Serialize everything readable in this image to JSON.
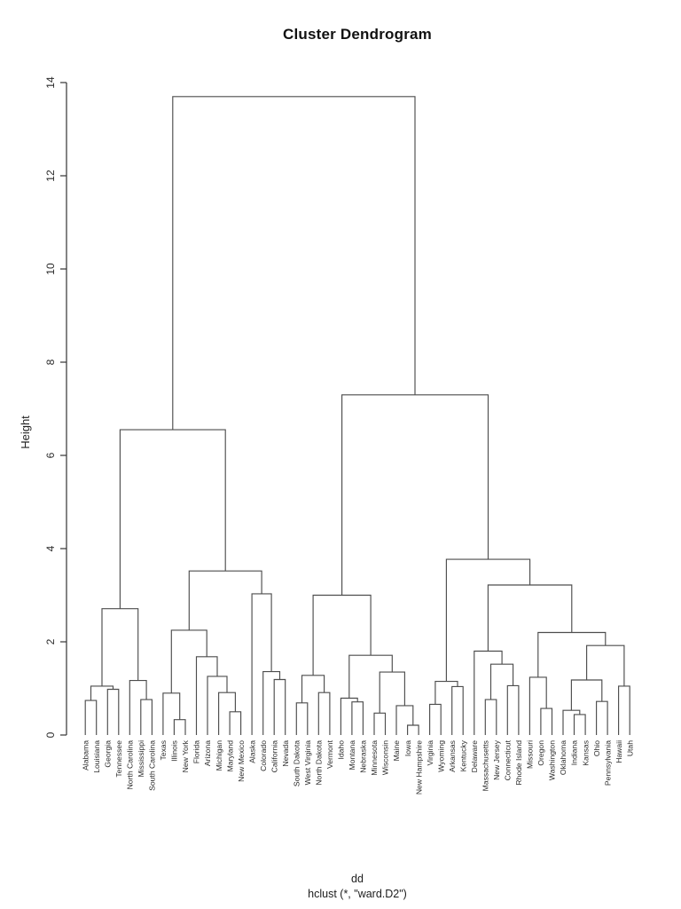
{
  "chart_data": {
    "type": "dendrogram",
    "title": "Cluster Dendrogram",
    "ylabel": "Height",
    "caption_line1": "dd",
    "caption_line2": "hclust (*, \"ward.D2\")",
    "ylim": [
      0,
      14
    ],
    "yticks": [
      0,
      2,
      4,
      6,
      8,
      10,
      12,
      14
    ],
    "grid": false,
    "line_color": "#4d4d4d",
    "leaves_in_order": [
      "Alabama",
      "Louisiana",
      "Georgia",
      "Tennessee",
      "North Carolina",
      "Mississippi",
      "South Carolina",
      "Texas",
      "Illinois",
      "New York",
      "Florida",
      "Arizona",
      "Michigan",
      "Maryland",
      "New Mexico",
      "Alaska",
      "Colorado",
      "California",
      "Nevada",
      "South Dakota",
      "West Virginia",
      "North Dakota",
      "Vermont",
      "Idaho",
      "Montana",
      "Nebraska",
      "Minnesota",
      "Wisconsin",
      "Maine",
      "Iowa",
      "New Hampshire",
      "Virginia",
      "Wyoming",
      "Arkansas",
      "Kentucky",
      "Delaware",
      "Massachusetts",
      "New Jersey",
      "Connecticut",
      "Rhode Island",
      "Missouri",
      "Oregon",
      "Washington",
      "Oklahoma",
      "Indiana",
      "Kansas",
      "Ohio",
      "Pennsylvania",
      "Hawaii",
      "Utah"
    ],
    "tree": {
      "h": 13.7,
      "c": [
        {
          "h": 6.55,
          "c": [
            {
              "h": 2.71,
              "c": [
                {
                  "h": 1.05,
                  "c": [
                    {
                      "h": 0.74,
                      "c": [
                        {
                          "name": "Alabama"
                        },
                        {
                          "name": "Louisiana"
                        }
                      ]
                    },
                    {
                      "h": 0.98,
                      "c": [
                        {
                          "name": "Georgia"
                        },
                        {
                          "name": "Tennessee"
                        }
                      ]
                    }
                  ]
                },
                {
                  "h": 1.17,
                  "c": [
                    {
                      "name": "North Carolina"
                    },
                    {
                      "h": 0.76,
                      "c": [
                        {
                          "name": "Mississippi"
                        },
                        {
                          "name": "South Carolina"
                        }
                      ]
                    }
                  ]
                }
              ]
            },
            {
              "h": 3.52,
              "c": [
                {
                  "h": 2.25,
                  "c": [
                    {
                      "h": 0.9,
                      "c": [
                        {
                          "name": "Texas"
                        },
                        {
                          "h": 0.33,
                          "c": [
                            {
                              "name": "Illinois"
                            },
                            {
                              "name": "New York"
                            }
                          ]
                        }
                      ]
                    },
                    {
                      "h": 1.68,
                      "c": [
                        {
                          "name": "Florida"
                        },
                        {
                          "h": 1.26,
                          "c": [
                            {
                              "name": "Arizona"
                            },
                            {
                              "h": 0.91,
                              "c": [
                                {
                                  "name": "Michigan"
                                },
                                {
                                  "h": 0.5,
                                  "c": [
                                    {
                                      "name": "Maryland"
                                    },
                                    {
                                      "name": "New Mexico"
                                    }
                                  ]
                                }
                              ]
                            }
                          ]
                        }
                      ]
                    }
                  ]
                },
                {
                  "h": 3.03,
                  "c": [
                    {
                      "name": "Alaska"
                    },
                    {
                      "h": 1.36,
                      "c": [
                        {
                          "name": "Colorado"
                        },
                        {
                          "h": 1.19,
                          "c": [
                            {
                              "name": "California"
                            },
                            {
                              "name": "Nevada"
                            }
                          ]
                        }
                      ]
                    }
                  ]
                }
              ]
            }
          ]
        },
        {
          "h": 7.3,
          "c": [
            {
              "h": 3.0,
              "c": [
                {
                  "h": 1.28,
                  "c": [
                    {
                      "h": 0.69,
                      "c": [
                        {
                          "name": "South Dakota"
                        },
                        {
                          "name": "West Virginia"
                        }
                      ]
                    },
                    {
                      "h": 0.91,
                      "c": [
                        {
                          "name": "North Dakota"
                        },
                        {
                          "name": "Vermont"
                        }
                      ]
                    }
                  ]
                },
                {
                  "h": 1.71,
                  "c": [
                    {
                      "h": 0.79,
                      "c": [
                        {
                          "name": "Idaho"
                        },
                        {
                          "h": 0.71,
                          "c": [
                            {
                              "name": "Montana"
                            },
                            {
                              "name": "Nebraska"
                            }
                          ]
                        }
                      ]
                    },
                    {
                      "h": 1.35,
                      "c": [
                        {
                          "h": 0.47,
                          "c": [
                            {
                              "name": "Minnesota"
                            },
                            {
                              "name": "Wisconsin"
                            }
                          ]
                        },
                        {
                          "h": 0.63,
                          "c": [
                            {
                              "name": "Maine"
                            },
                            {
                              "h": 0.21,
                              "c": [
                                {
                                  "name": "Iowa"
                                },
                                {
                                  "name": "New Hampshire"
                                }
                              ]
                            }
                          ]
                        }
                      ]
                    }
                  ]
                }
              ]
            },
            {
              "h": 3.77,
              "c": [
                {
                  "h": 1.15,
                  "c": [
                    {
                      "h": 0.66,
                      "c": [
                        {
                          "name": "Virginia"
                        },
                        {
                          "name": "Wyoming"
                        }
                      ]
                    },
                    {
                      "h": 1.04,
                      "c": [
                        {
                          "name": "Arkansas"
                        },
                        {
                          "name": "Kentucky"
                        }
                      ]
                    }
                  ]
                },
                {
                  "h": 3.22,
                  "c": [
                    {
                      "h": 1.8,
                      "c": [
                        {
                          "name": "Delaware"
                        },
                        {
                          "h": 1.52,
                          "c": [
                            {
                              "h": 0.76,
                              "c": [
                                {
                                  "name": "Massachusetts"
                                },
                                {
                                  "name": "New Jersey"
                                }
                              ]
                            },
                            {
                              "h": 1.06,
                              "c": [
                                {
                                  "name": "Connecticut"
                                },
                                {
                                  "name": "Rhode Island"
                                }
                              ]
                            }
                          ]
                        }
                      ]
                    },
                    {
                      "h": 2.2,
                      "c": [
                        {
                          "h": 1.24,
                          "c": [
                            {
                              "name": "Missouri"
                            },
                            {
                              "h": 0.57,
                              "c": [
                                {
                                  "name": "Oregon"
                                },
                                {
                                  "name": "Washington"
                                }
                              ]
                            }
                          ]
                        },
                        {
                          "h": 1.92,
                          "c": [
                            {
                              "h": 1.18,
                              "c": [
                                {
                                  "h": 0.53,
                                  "c": [
                                    {
                                      "name": "Oklahoma"
                                    },
                                    {
                                      "h": 0.44,
                                      "c": [
                                        {
                                          "name": "Indiana"
                                        },
                                        {
                                          "name": "Kansas"
                                        }
                                      ]
                                    }
                                  ]
                                },
                                {
                                  "h": 0.72,
                                  "c": [
                                    {
                                      "name": "Ohio"
                                    },
                                    {
                                      "name": "Pennsylvania"
                                    }
                                  ]
                                }
                              ]
                            },
                            {
                              "h": 1.05,
                              "c": [
                                {
                                  "name": "Hawaii"
                                },
                                {
                                  "name": "Utah"
                                }
                              ]
                            }
                          ]
                        }
                      ]
                    }
                  ]
                }
              ]
            }
          ]
        }
      ]
    }
  }
}
